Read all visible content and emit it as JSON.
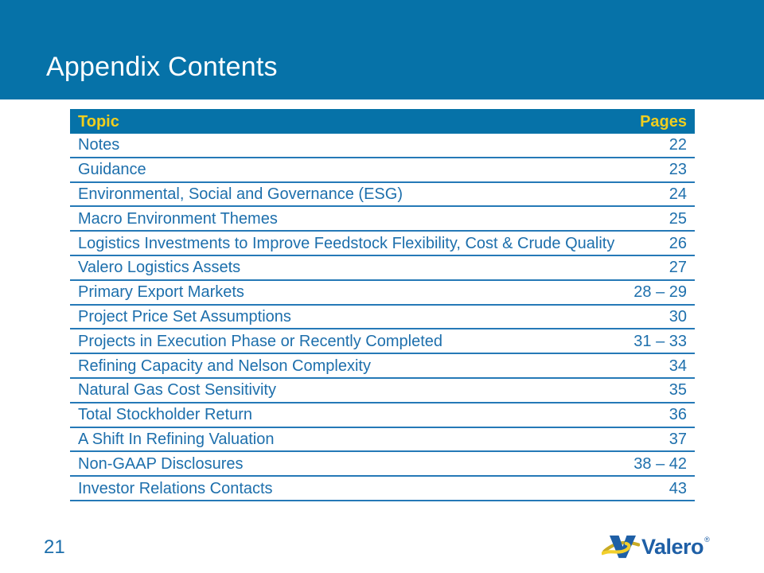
{
  "slide": {
    "title": "Appendix Contents",
    "page_number": "21"
  },
  "table": {
    "headers": {
      "topic": "Topic",
      "pages": "Pages"
    },
    "rows": [
      {
        "topic": "Notes",
        "pages": "22"
      },
      {
        "topic": "Guidance",
        "pages": "23"
      },
      {
        "topic": "Environmental, Social and Governance (ESG)",
        "pages": "24"
      },
      {
        "topic": "Macro Environment Themes",
        "pages": "25"
      },
      {
        "topic": "Logistics Investments to Improve Feedstock Flexibility, Cost & Crude Quality",
        "pages": "26"
      },
      {
        "topic": "Valero Logistics Assets",
        "pages": "27"
      },
      {
        "topic": "Primary Export Markets",
        "pages": "28 – 29"
      },
      {
        "topic": "Project Price Set Assumptions",
        "pages": "30"
      },
      {
        "topic": "Projects in Execution Phase or Recently Completed",
        "pages": "31 – 33"
      },
      {
        "topic": "Refining Capacity and Nelson Complexity",
        "pages": "34"
      },
      {
        "topic": "Natural Gas Cost Sensitivity",
        "pages": "35"
      },
      {
        "topic": "Total Stockholder Return",
        "pages": "36"
      },
      {
        "topic": "A Shift In Refining Valuation",
        "pages": "37"
      },
      {
        "topic": "Non-GAAP Disclosures",
        "pages": "38 – 42"
      },
      {
        "topic": "Investor Relations Contacts",
        "pages": "43"
      }
    ]
  },
  "logo": {
    "wordmark": "Valero",
    "registered_mark": "®"
  },
  "colors": {
    "band_blue": "#0672a8",
    "header_yellow": "#f0ce1e",
    "row_text_blue": "#1d6fac",
    "rule_blue": "#2579b7",
    "title_white": "#ffffff",
    "logo_blue": "#1e5fa6",
    "logo_gold": "#f2cf2b"
  }
}
